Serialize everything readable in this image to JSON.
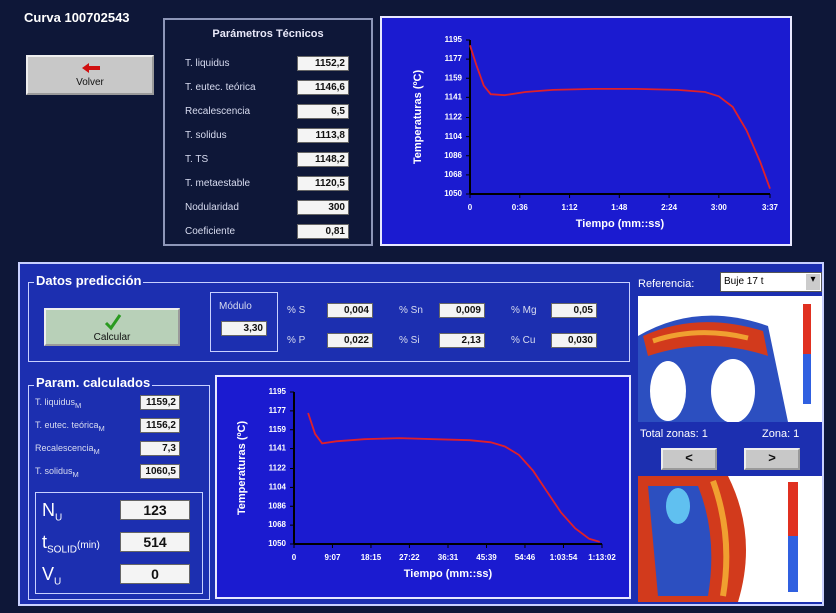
{
  "header": {
    "title": "Curva 100702543"
  },
  "back_button": "Volver",
  "technical": {
    "title": "Parámetros Técnicos",
    "rows": [
      {
        "label": "T. liquidus",
        "value": "1152,2"
      },
      {
        "label": "T. eutec. teórica",
        "value": "1146,6"
      },
      {
        "label": "Recalescencia",
        "value": "6,5"
      },
      {
        "label": "T. solidus",
        "value": "1113,8"
      },
      {
        "label": "T. TS",
        "value": "1148,2"
      },
      {
        "label": "T. metaestable",
        "value": "1120,5"
      },
      {
        "label": "Nodularidad",
        "value": "300"
      },
      {
        "label": "Coeficiente",
        "value": "0,81"
      }
    ]
  },
  "prediction": {
    "title": "Datos predicción",
    "button": "Calcular",
    "module": {
      "label": "Módulo",
      "value": "3,30"
    },
    "composition": [
      {
        "label": "% S",
        "value": "0,004"
      },
      {
        "label": "% Sn",
        "value": "0,009"
      },
      {
        "label": "% Mg",
        "value": "0,05"
      },
      {
        "label": "% P",
        "value": "0,022"
      },
      {
        "label": "% Si",
        "value": "2,13"
      },
      {
        "label": "% Cu",
        "value": "0,030"
      }
    ]
  },
  "reference": {
    "label": "Referencia:",
    "selected": "Buje 17 t",
    "total_zones": "Total zonas: 1",
    "zone": "Zona: 1",
    "prev": "<",
    "next": ">"
  },
  "calculated": {
    "title": "Param. calculados",
    "rows": [
      {
        "label": "T. liquidus",
        "sub": "M",
        "value": "1159,2"
      },
      {
        "label": "T. eutec. teórica",
        "sub": "M",
        "value": "1156,2"
      },
      {
        "label": "Recalescencia",
        "sub": "M",
        "value": "7,3"
      },
      {
        "label": "T. solidus",
        "sub": "M",
        "value": "1060,5"
      }
    ],
    "results": [
      {
        "label": "N",
        "sub": "U",
        "value": "123"
      },
      {
        "label": "t",
        "sub": "SOLID",
        "unit": "(min)",
        "value": "514"
      },
      {
        "label": "V",
        "sub": "U",
        "value": "0"
      }
    ]
  },
  "chart_data": [
    {
      "type": "line",
      "y_label": "Temperaturas (ºC)",
      "x_label": "Tiempo (mm::ss)",
      "color": "#e0202a",
      "x": [
        0,
        5,
        10,
        15,
        25,
        40,
        60,
        90,
        120,
        150,
        170,
        180,
        190,
        200,
        210,
        217
      ],
      "values": [
        1190,
        1170,
        1152,
        1144,
        1143,
        1146,
        1148,
        1149,
        1149,
        1148,
        1146,
        1142,
        1132,
        1110,
        1080,
        1055
      ],
      "xlim": [
        0,
        217
      ],
      "ylim": [
        1050,
        1195
      ],
      "xticks": [
        0,
        {
          "value": 36,
          "label": "0:36"
        },
        {
          "value": 72,
          "label": "1:12"
        },
        {
          "value": 108,
          "label": "1:48"
        },
        {
          "value": 144,
          "label": "2:24"
        },
        {
          "value": 180,
          "label": "3:00"
        },
        {
          "value": 217,
          "label": "3:37"
        }
      ],
      "yticks": [
        1050,
        1068,
        1086,
        1104,
        1122,
        1141,
        1159,
        1177,
        1195
      ],
      "grid": false
    },
    {
      "type": "line",
      "y_label": "Temperaturas (ºC)",
      "x_label": "Tiempo (mm::ss)",
      "color": "#e0202a",
      "x": [
        200,
        300,
        400,
        600,
        1000,
        1500,
        2000,
        2500,
        2800,
        3000,
        3200,
        3400,
        3600,
        3800,
        4000,
        4200,
        4350
      ],
      "values": [
        1175,
        1155,
        1146,
        1148,
        1150,
        1151,
        1150,
        1149,
        1147,
        1143,
        1135,
        1120,
        1100,
        1080,
        1065,
        1055,
        1052
      ],
      "xlim": [
        0,
        4382
      ],
      "ylim": [
        1050,
        1195
      ],
      "xticks": [
        0,
        {
          "value": 547,
          "label": "9:07"
        },
        {
          "value": 1095,
          "label": "18:15"
        },
        {
          "value": 1642,
          "label": "27:22"
        },
        {
          "value": 2191,
          "label": "36:31"
        },
        {
          "value": 2739,
          "label": "45:39"
        },
        {
          "value": 3286,
          "label": "54:46"
        },
        {
          "value": 3834,
          "label": "1:03:54"
        },
        {
          "value": 4382,
          "label": "1:13:02"
        }
      ],
      "yticks": [
        1050,
        1068,
        1086,
        1104,
        1122,
        1141,
        1159,
        1177,
        1195
      ],
      "grid": false
    }
  ]
}
